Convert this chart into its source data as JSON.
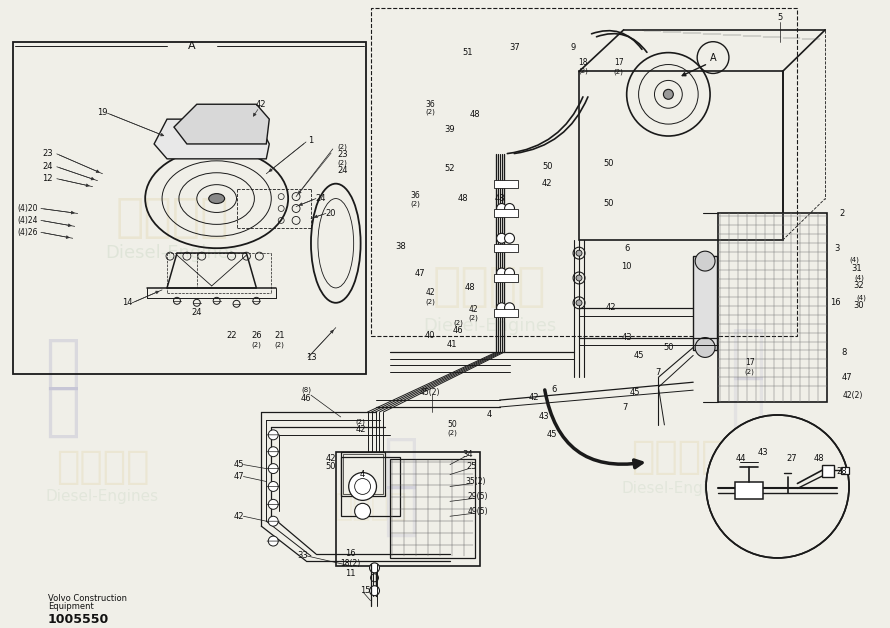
{
  "bg_color": "#f0efe8",
  "line_color": "#1a1a1a",
  "text_color": "#111111",
  "footer_line1": "Volvo Construction",
  "footer_line2": "Equipment",
  "part_number": "1005550",
  "wm1_color": "#d4c070",
  "wm2_color": "#88aa88",
  "wm_alpha": 0.13
}
